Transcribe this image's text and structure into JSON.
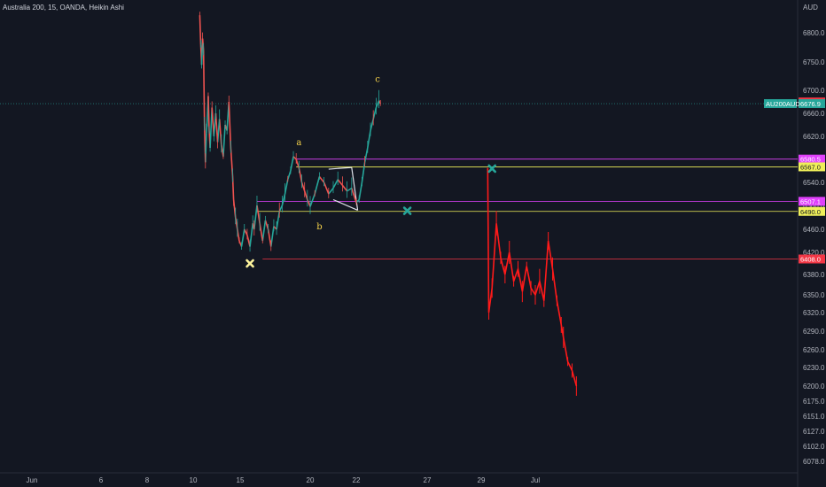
{
  "header": {
    "title": "Australia 200, 15, OANDA, Heikin Ashi",
    "currency": "AUD"
  },
  "chart_data": {
    "type": "line",
    "ylim": [
      6060,
      6830
    ],
    "y_ticks": [
      {
        "value": 6800,
        "label": "6800.0"
      },
      {
        "value": 6750,
        "label": "6750.0"
      },
      {
        "value": 6700,
        "label": "6700.0"
      },
      {
        "value": 6660,
        "label": "6660.0"
      },
      {
        "value": 6620,
        "label": "6620.0"
      },
      {
        "value": 6580,
        "label": "6580.0"
      },
      {
        "value": 6540,
        "label": "6540.0"
      },
      {
        "value": 6500,
        "label": "6500.0"
      },
      {
        "value": 6460,
        "label": "6460.0"
      },
      {
        "value": 6420,
        "label": "6420.0"
      },
      {
        "value": 6380,
        "label": "6380.0"
      },
      {
        "value": 6350,
        "label": "6350.0"
      },
      {
        "value": 6320,
        "label": "6320.0"
      },
      {
        "value": 6290,
        "label": "6290.0"
      },
      {
        "value": 6260,
        "label": "6260.0"
      },
      {
        "value": 6230,
        "label": "6230.0"
      },
      {
        "value": 6200,
        "label": "6200.0"
      },
      {
        "value": 6175,
        "label": "6175.0"
      },
      {
        "value": 6151,
        "label": "6151.0"
      },
      {
        "value": 6127,
        "label": "6127.0"
      },
      {
        "value": 6102,
        "label": "6102.0"
      },
      {
        "value": 6078,
        "label": "6078.0"
      }
    ],
    "x_ticks": [
      {
        "day": 1,
        "label": "Jun"
      },
      {
        "day": 6,
        "label": "6"
      },
      {
        "day": 8,
        "label": "8"
      },
      {
        "day": 10,
        "label": "10"
      },
      {
        "day": 15,
        "label": "15"
      },
      {
        "day": 20,
        "label": "20"
      },
      {
        "day": 22,
        "label": "22"
      },
      {
        "day": 27,
        "label": "27"
      },
      {
        "day": 29,
        "label": "29"
      },
      {
        "day": 31.5,
        "label": "Jul"
      }
    ],
    "price_series": {
      "name": "AU200AUD",
      "points": [
        [
          10.7,
          6830
        ],
        [
          10.8,
          6780
        ],
        [
          10.9,
          6745
        ],
        [
          11.0,
          6790
        ],
        [
          11.1,
          6770
        ],
        [
          11.2,
          6640
        ],
        [
          11.3,
          6575
        ],
        [
          11.4,
          6625
        ],
        [
          11.5,
          6650
        ],
        [
          11.6,
          6690
        ],
        [
          11.7,
          6630
        ],
        [
          11.8,
          6600
        ],
        [
          12.0,
          6670
        ],
        [
          12.2,
          6620
        ],
        [
          12.4,
          6660
        ],
        [
          12.6,
          6610
        ],
        [
          12.8,
          6650
        ],
        [
          13.0,
          6605
        ],
        [
          13.2,
          6585
        ],
        [
          13.4,
          6640
        ],
        [
          13.6,
          6630
        ],
        [
          13.8,
          6680
        ],
        [
          14.0,
          6600
        ],
        [
          14.2,
          6550
        ],
        [
          14.3,
          6510
        ],
        [
          14.5,
          6480
        ],
        [
          14.7,
          6460
        ],
        [
          14.9,
          6440
        ],
        [
          15.1,
          6430
        ],
        [
          15.3,
          6460
        ],
        [
          15.5,
          6450
        ],
        [
          15.7,
          6430
        ],
        [
          15.9,
          6470
        ],
        [
          16.0,
          6460
        ],
        [
          16.2,
          6500
        ],
        [
          16.4,
          6470
        ],
        [
          16.6,
          6440
        ],
        [
          16.8,
          6475
        ],
        [
          17.0,
          6460
        ],
        [
          17.2,
          6430
        ],
        [
          17.4,
          6465
        ],
        [
          17.6,
          6460
        ],
        [
          17.8,
          6490
        ],
        [
          18.0,
          6500
        ],
        [
          18.2,
          6520
        ],
        [
          18.4,
          6545
        ],
        [
          18.6,
          6560
        ],
        [
          18.8,
          6585
        ],
        [
          19.0,
          6580
        ],
        [
          19.2,
          6565
        ],
        [
          19.4,
          6540
        ],
        [
          19.6,
          6525
        ],
        [
          19.8,
          6510
        ],
        [
          20.0,
          6498
        ],
        [
          20.2,
          6520
        ],
        [
          20.4,
          6550
        ],
        [
          20.6,
          6540
        ],
        [
          20.8,
          6520
        ],
        [
          21.0,
          6530
        ],
        [
          21.2,
          6545
        ],
        [
          21.4,
          6535
        ],
        [
          21.6,
          6525
        ],
        [
          21.8,
          6530
        ],
        [
          22.0,
          6505
        ],
        [
          22.2,
          6510
        ],
        [
          22.4,
          6540
        ],
        [
          22.6,
          6575
        ],
        [
          22.8,
          6600
        ],
        [
          23.0,
          6630
        ],
        [
          23.2,
          6650
        ],
        [
          23.4,
          6670
        ],
        [
          23.6,
          6682
        ],
        [
          23.7,
          6677
        ]
      ]
    },
    "projection_series": {
      "points": [
        [
          29.3,
          6565
        ],
        [
          29.35,
          6320
        ],
        [
          29.5,
          6360
        ],
        [
          29.7,
          6470
        ],
        [
          29.9,
          6410
        ],
        [
          30.1,
          6380
        ],
        [
          30.3,
          6420
        ],
        [
          30.5,
          6370
        ],
        [
          30.7,
          6390
        ],
        [
          30.9,
          6355
        ],
        [
          31.1,
          6395
        ],
        [
          31.3,
          6360
        ],
        [
          31.5,
          6350
        ],
        [
          31.7,
          6370
        ],
        [
          31.9,
          6340
        ],
        [
          32.1,
          6440
        ],
        [
          32.3,
          6390
        ],
        [
          32.5,
          6340
        ],
        [
          32.7,
          6300
        ],
        [
          32.8,
          6280
        ],
        [
          33.0,
          6240
        ],
        [
          33.2,
          6225
        ],
        [
          33.4,
          6200
        ]
      ]
    },
    "horizontal_levels": [
      {
        "value": 6580.5,
        "label": "6580.5",
        "color": "#e040fb",
        "from_day": 19.0
      },
      {
        "value": 6567.0,
        "label": "6567.0",
        "color": "#f0f05a",
        "from_day": 19.0
      },
      {
        "value": 6507.1,
        "label": "6507.1",
        "color": "#e040fb",
        "from_day": 16.2
      },
      {
        "value": 6490.0,
        "label": "6490.0",
        "color": "#f0f05a",
        "from_day": 16.2
      },
      {
        "value": 6408.0,
        "label": "6408.0",
        "color": "#f23645",
        "from_day": 16.6
      }
    ],
    "price_tags": [
      {
        "value": 6679.8,
        "label": "6679.8",
        "color": "#f23645"
      },
      {
        "value": 6676.9,
        "label": "6676.9",
        "color": "#26a69a"
      }
    ],
    "symbol_tag": {
      "label": "AU200AUD",
      "value": 6676.9,
      "color": "#26a69a"
    },
    "wave_labels": [
      {
        "text": "a",
        "day": 19.2,
        "value": 6605
      },
      {
        "text": "b",
        "day": 20.4,
        "value": 6460
      },
      {
        "text": "c",
        "day": 23.5,
        "value": 6715
      }
    ],
    "markers": [
      {
        "name": "x-marker-low",
        "day": 15.7,
        "value": 6400,
        "color": "#fff59d"
      },
      {
        "name": "x-marker-mid",
        "day": 25.6,
        "value": 6491,
        "color": "#26a69a"
      },
      {
        "name": "x-marker-high",
        "day": 29.5,
        "value": 6564,
        "color": "#26a69a"
      }
    ],
    "wedge_lines": [
      [
        [
          20.8,
          6563
        ],
        [
          21.8,
          6566
        ]
      ],
      [
        [
          21.8,
          6566
        ],
        [
          22.1,
          6492
        ]
      ],
      [
        [
          21.0,
          6510
        ],
        [
          22.1,
          6492
        ]
      ]
    ]
  }
}
